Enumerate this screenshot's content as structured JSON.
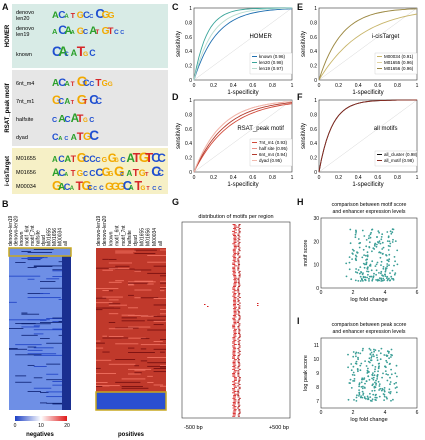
{
  "panels": {
    "A": "A",
    "B": "B",
    "C": "C",
    "D": "D",
    "E": "E",
    "F": "F",
    "G": "G",
    "H": "H",
    "I": "I"
  },
  "panelA": {
    "groups": [
      {
        "name": "HOMER",
        "color": "#d8ebe6",
        "motifs": [
          "denovo len20",
          "denovo len19",
          "known"
        ]
      },
      {
        "name": "RSAT_peak motif",
        "color": "#e6e6e6",
        "motifs": [
          "6nt_m4",
          "7nt_m1",
          "halfsite",
          "dyad"
        ]
      },
      {
        "name": "i-cisTarget",
        "color": "#f6f0c6",
        "motifs": [
          "M01655",
          "M01656",
          "M00034"
        ]
      }
    ],
    "logo_seqs": [
      "ACATGCCCGG",
      "ACAAGCATGTCC",
      "CACATGC",
      "ACATGCCTGG",
      "GCATGTCC",
      "CACATGC",
      "CACATGC",
      "ACATGCCCGGGCATGTCC",
      "ACATGCCCGGGCATGTCC",
      "GACATGCCCGGGCATGTCC"
    ]
  },
  "panelB": {
    "columns": [
      "denovo-len19",
      "denovo-len20",
      "known",
      "motif_6nt",
      "motif_7nt",
      "halfsite",
      "dyad",
      "M01655",
      "M01656",
      "M00034",
      "all"
    ],
    "legend_ticks": [
      "0",
      "10",
      "20"
    ],
    "negatives_label": "negatives",
    "positives_label": "positives",
    "colors": {
      "low": "#2a4fd0",
      "high": "#e02020",
      "border": "#c8a820"
    }
  },
  "roc": {
    "x_label": "1-specificity",
    "y_label": "sensitivity",
    "ticks": [
      "0",
      "0.2",
      "0.4",
      "0.6",
      "0.8",
      "1"
    ],
    "C": {
      "title": "HOMER",
      "legend": [
        "known (0.96)",
        "len20 (0.98)",
        "len19 (0.97)"
      ],
      "colors": [
        "#1f6fb0",
        "#3aa59a",
        "#b9dccf"
      ]
    },
    "D": {
      "title": "RSAT_peak motif",
      "legend": [
        "7nt_m1 (0.93)",
        "half site (0.95)",
        "6nt_m4 (0.94)",
        "dyad (0.95)"
      ],
      "colors": [
        "#d24a3a",
        "#e9928a",
        "#b33b2e",
        "#f2b9ad"
      ]
    },
    "E": {
      "title": "i-cisTarget",
      "legend": [
        "M00034 (0.91)",
        "M01655 (0.96)",
        "M01656 (0.96)"
      ],
      "colors": [
        "#c8b56a",
        "#e2d3a1",
        "#9c8a48"
      ]
    },
    "F": {
      "title": "all motifs",
      "legend": [
        "all_cluster (0.98)",
        "all_motif (0.98)"
      ],
      "colors": [
        "#111111",
        "#8a2c22"
      ]
    }
  },
  "panelG": {
    "title": "distribution of motifs per region",
    "left_label": "-500 bp",
    "right_label": "+500 bp"
  },
  "panelH": {
    "title": "comparison between motif score and enhancer expression levels",
    "title_line1": "comparison between motif score",
    "title_line2": "and enhancer expression levels",
    "ylabel": "motif score",
    "xlabel": "log fold change",
    "xticks": [
      "0",
      "2",
      "4",
      "6"
    ],
    "yticks": [
      "0",
      "10",
      "20",
      "30"
    ]
  },
  "panelI": {
    "title_line1": "comparison between peak score",
    "title_line2": "and enhancer expression levels",
    "ylabel": "log peak score",
    "xlabel": "log fold change",
    "xticks": [
      "0",
      "2",
      "4",
      "6"
    ],
    "yticks": [
      "7",
      "8",
      "9",
      "10",
      "11"
    ]
  }
}
